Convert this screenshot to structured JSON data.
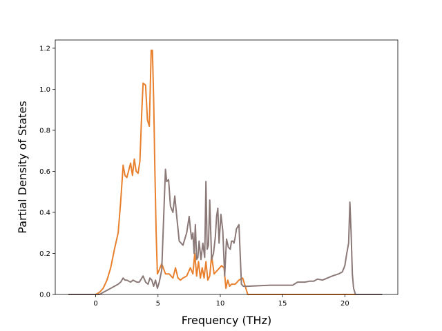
{
  "chart_data": {
    "type": "line",
    "xlabel": "Frequency (THz)",
    "ylabel": "Partial Density of States",
    "xlim": [
      -3.25,
      24.25
    ],
    "ylim": [
      0,
      1.24
    ],
    "xticks": [
      0,
      5,
      10,
      15,
      20
    ],
    "yticks": [
      0.0,
      0.2,
      0.4,
      0.6,
      0.8,
      1.0,
      1.2
    ],
    "ytick_labels": [
      "0.0",
      "0.2",
      "0.4",
      "0.6",
      "0.8",
      "1.0",
      "1.2"
    ],
    "legend": "none",
    "grid": false,
    "series": [
      {
        "color": "#e8802e",
        "x": [
          -2.2,
          0.0,
          0.3,
          0.6,
          0.9,
          1.2,
          1.5,
          1.8,
          2.0,
          2.2,
          2.35,
          2.5,
          2.8,
          2.95,
          3.1,
          3.25,
          3.4,
          3.55,
          3.7,
          3.8,
          4.0,
          4.15,
          4.3,
          4.45,
          4.55,
          4.65,
          4.75,
          4.85,
          4.95,
          5.1,
          5.3,
          5.6,
          5.9,
          6.2,
          6.4,
          6.6,
          6.8,
          7.0,
          7.3,
          7.6,
          7.8,
          7.95,
          8.1,
          8.25,
          8.4,
          8.55,
          8.7,
          8.85,
          9.0,
          9.15,
          9.3,
          9.5,
          9.8,
          10.1,
          10.3,
          10.45,
          10.6,
          10.75,
          10.9,
          11.2,
          11.5,
          11.8,
          12.0,
          12.2,
          14.0,
          16.0,
          18.0,
          19.5,
          20.0,
          20.2,
          20.4,
          20.55,
          20.7,
          20.85,
          21.0,
          23.0
        ],
        "y": [
          0.0,
          0.0,
          0.01,
          0.03,
          0.07,
          0.13,
          0.22,
          0.3,
          0.45,
          0.63,
          0.58,
          0.57,
          0.64,
          0.58,
          0.66,
          0.6,
          0.59,
          0.65,
          0.9,
          1.03,
          1.02,
          0.85,
          0.82,
          1.19,
          1.19,
          0.95,
          0.6,
          0.3,
          0.1,
          0.12,
          0.15,
          0.1,
          0.1,
          0.08,
          0.13,
          0.08,
          0.07,
          0.08,
          0.09,
          0.13,
          0.1,
          0.2,
          0.09,
          0.16,
          0.08,
          0.13,
          0.08,
          0.16,
          0.07,
          0.09,
          0.19,
          0.1,
          0.12,
          0.14,
          0.13,
          0.03,
          0.07,
          0.04,
          0.05,
          0.05,
          0.07,
          0.08,
          0.04,
          0.0,
          0.0,
          0.0,
          0.0,
          0.0,
          0.0,
          0.0,
          0.0,
          0.0,
          0.0,
          0.0,
          0.0,
          0.0
        ]
      },
      {
        "color": "#8b7978",
        "x": [
          -2.2,
          0.0,
          0.3,
          0.6,
          0.9,
          1.2,
          1.5,
          1.8,
          2.0,
          2.2,
          2.35,
          2.5,
          2.8,
          3.0,
          3.3,
          3.5,
          3.8,
          4.0,
          4.2,
          4.35,
          4.5,
          4.65,
          4.8,
          4.95,
          5.1,
          5.3,
          5.5,
          5.6,
          5.7,
          5.85,
          6.0,
          6.2,
          6.35,
          6.5,
          6.7,
          7.0,
          7.3,
          7.5,
          7.6,
          7.7,
          7.8,
          7.9,
          8.0,
          8.1,
          8.2,
          8.3,
          8.45,
          8.6,
          8.75,
          8.85,
          8.95,
          9.05,
          9.15,
          9.3,
          9.45,
          9.6,
          9.7,
          9.8,
          9.9,
          10.05,
          10.2,
          10.35,
          10.5,
          10.65,
          10.8,
          10.9,
          11.0,
          11.1,
          11.2,
          11.3,
          11.5,
          11.7,
          11.85,
          12.0,
          12.2,
          14.0,
          15.5,
          15.8,
          16.2,
          16.8,
          17.2,
          17.5,
          17.8,
          18.2,
          18.6,
          19.0,
          19.5,
          19.8,
          20.0,
          20.15,
          20.3,
          20.4,
          20.5,
          20.6,
          20.7,
          20.85,
          21.0,
          23.0
        ],
        "y": [
          0.0,
          0.0,
          0.0,
          0.01,
          0.02,
          0.03,
          0.04,
          0.05,
          0.06,
          0.08,
          0.07,
          0.07,
          0.06,
          0.07,
          0.06,
          0.06,
          0.09,
          0.06,
          0.05,
          0.08,
          0.07,
          0.04,
          0.07,
          0.03,
          0.06,
          0.12,
          0.45,
          0.61,
          0.55,
          0.56,
          0.43,
          0.4,
          0.48,
          0.38,
          0.26,
          0.24,
          0.3,
          0.38,
          0.32,
          0.27,
          0.3,
          0.2,
          0.34,
          0.17,
          0.18,
          0.26,
          0.17,
          0.25,
          0.18,
          0.55,
          0.22,
          0.24,
          0.46,
          0.17,
          0.2,
          0.28,
          0.38,
          0.42,
          0.25,
          0.39,
          0.31,
          0.09,
          0.27,
          0.23,
          0.22,
          0.26,
          0.26,
          0.25,
          0.28,
          0.32,
          0.34,
          0.05,
          0.04,
          0.04,
          0.04,
          0.045,
          0.045,
          0.045,
          0.06,
          0.06,
          0.065,
          0.065,
          0.075,
          0.07,
          0.08,
          0.09,
          0.1,
          0.11,
          0.14,
          0.2,
          0.25,
          0.45,
          0.3,
          0.1,
          0.03,
          0.0,
          0.0,
          0.0
        ]
      }
    ]
  }
}
